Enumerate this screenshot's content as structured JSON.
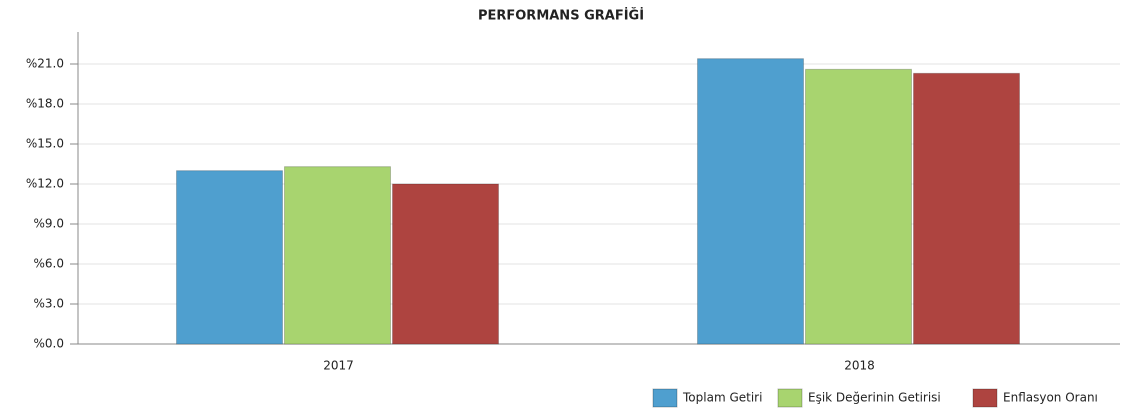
{
  "chart_data": {
    "type": "bar",
    "title": "PERFORMANS GRAFİĞİ",
    "categories": [
      "2017",
      "2018"
    ],
    "series": [
      {
        "name": "Toplam Getiri",
        "color": "#4f9fcf",
        "values": [
          13.0,
          21.4
        ]
      },
      {
        "name": "Eşik Değerinin Getirisi",
        "color": "#a8d46f",
        "values": [
          13.3,
          20.6
        ]
      },
      {
        "name": "Enflasyon Oranı",
        "color": "#ae4440",
        "values": [
          12.0,
          20.3
        ]
      }
    ],
    "ylim": [
      0,
      23.4
    ],
    "yticks": [
      {
        "value": 0,
        "label": "%0.0"
      },
      {
        "value": 3,
        "label": "%3.0"
      },
      {
        "value": 6,
        "label": "%6.0"
      },
      {
        "value": 9,
        "label": "%9.0"
      },
      {
        "value": 12,
        "label": "%12.0"
      },
      {
        "value": 15,
        "label": "%15.0"
      },
      {
        "value": 18,
        "label": "%18.0"
      },
      {
        "value": 21,
        "label": "%21.0"
      }
    ],
    "grid": true,
    "legend": "bottom-right"
  }
}
